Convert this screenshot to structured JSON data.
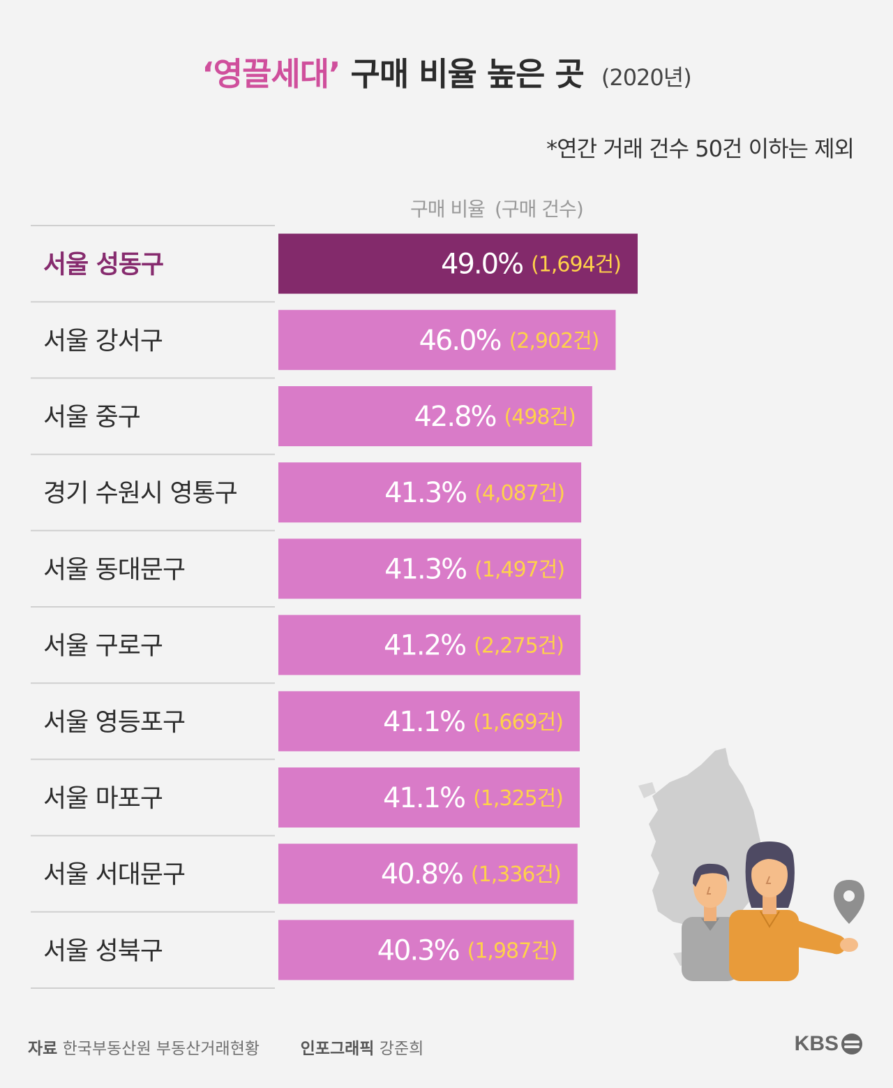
{
  "header": {
    "title_highlight": "‘영끌세대’",
    "title_main": "구매 비율 높은 곳",
    "title_year": "(2020년)",
    "note": "*연간 거래 건수 50건 이하는 제외",
    "column_label": "구매 비율",
    "column_sublabel": "(구매 건수)"
  },
  "chart_data": {
    "type": "bar",
    "orientation": "horizontal",
    "categories": [
      "서울 성동구",
      "서울 강서구",
      "서울 중구",
      "경기 수원시 영통구",
      "서울 동대문구",
      "서울 구로구",
      "서울 영등포구",
      "서울 마포구",
      "서울 서대문구",
      "서울 성북구"
    ],
    "series": [
      {
        "values": [
          49.0,
          46.0,
          42.8,
          41.3,
          41.3,
          41.2,
          41.1,
          41.1,
          40.8,
          40.3
        ],
        "value_labels": [
          "49.0%",
          "46.0%",
          "42.8%",
          "41.3%",
          "41.3%",
          "41.2%",
          "41.1%",
          "41.1%",
          "40.8%",
          "40.3%"
        ],
        "count_labels": [
          "(1,694건)",
          "(2,902건)",
          "(498건)",
          "(4,087건)",
          "(1,497건)",
          "(2,275건)",
          "(1,669건)",
          "(1,325건)",
          "(1,336건)",
          "(1,987건)"
        ]
      }
    ],
    "colors": {
      "highlight_bar": "#832a6b",
      "bar": "#d97bc8",
      "count_text": "#ffd24a"
    }
  },
  "footer": {
    "source_label": "자료",
    "source_text": "한국부동산원 부동산거래현황",
    "credit_label": "인포그래픽",
    "credit_text": "강준희",
    "logo": "KBS"
  },
  "illustration": {
    "icons": [
      "korea-map-icon",
      "man-icon",
      "woman-icon",
      "location-pin-icon"
    ]
  }
}
